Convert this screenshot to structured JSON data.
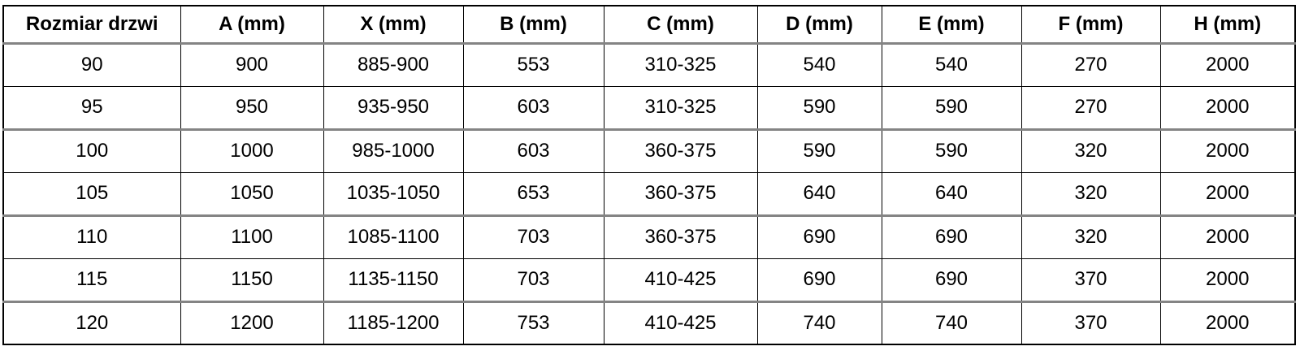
{
  "table": {
    "columns": [
      "Rozmiar drzwi",
      "A (mm)",
      "X (mm)",
      "B (mm)",
      "C (mm)",
      "D (mm)",
      "E (mm)",
      "F (mm)",
      "H (mm)"
    ],
    "rows": [
      [
        "90",
        "900",
        "885-900",
        "553",
        "310-325",
        "540",
        "540",
        "270",
        "2000"
      ],
      [
        "95",
        "950",
        "935-950",
        "603",
        "310-325",
        "590",
        "590",
        "270",
        "2000"
      ],
      [
        "100",
        "1000",
        "985-1000",
        "603",
        "360-375",
        "590",
        "590",
        "320",
        "2000"
      ],
      [
        "105",
        "1050",
        "1035-1050",
        "653",
        "360-375",
        "640",
        "640",
        "320",
        "2000"
      ],
      [
        "110",
        "1100",
        "1085-1100",
        "703",
        "360-375",
        "690",
        "690",
        "320",
        "2000"
      ],
      [
        "115",
        "1150",
        "1135-1150",
        "703",
        "410-425",
        "690",
        "690",
        "370",
        "2000"
      ],
      [
        "120",
        "1200",
        "1185-1200",
        "753",
        "410-425",
        "740",
        "740",
        "370",
        "2000"
      ]
    ]
  },
  "colors": {
    "grid_line": "#000000",
    "thick_separator": "#848484",
    "text": "#000000",
    "background": "#ffffff"
  }
}
